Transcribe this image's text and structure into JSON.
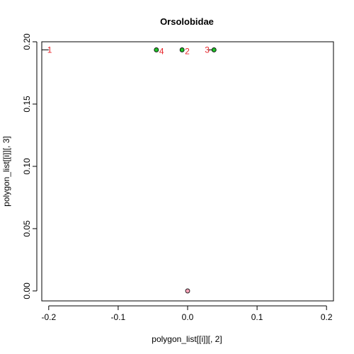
{
  "chart_data": {
    "type": "scatter",
    "title": "Orsolobidae",
    "xlabel": "polygon_list[[i]][, 2]",
    "ylabel": "polygon_list[[i]][, 3]",
    "xlim": [
      -0.21,
      0.21
    ],
    "ylim": [
      -0.008,
      0.2
    ],
    "xticks": [
      -0.2,
      -0.1,
      0.0,
      0.1,
      0.2
    ],
    "xtick_labels": [
      "-0.2",
      "-0.1",
      "0.0",
      "0.1",
      "0.2"
    ],
    "yticks": [
      0.0,
      0.05,
      0.1,
      0.15,
      0.2
    ],
    "ytick_labels": [
      "0.00",
      "0.05",
      "0.10",
      "0.15",
      "0.20"
    ],
    "grid": false,
    "point_colors": {
      "green": "#22c02a",
      "pink": "#f4a3b8",
      "label": "#e8252a"
    },
    "segments": [
      {
        "x": [
          -0.21,
          -0.2
        ],
        "y": [
          0.1935,
          0.1935
        ]
      },
      {
        "x": [
          0.03,
          0.038
        ],
        "y": [
          0.1935,
          0.1935
        ]
      }
    ],
    "points": [
      {
        "x": -0.045,
        "y": 0.1935,
        "fill": "green"
      },
      {
        "x": -0.008,
        "y": 0.1935,
        "fill": "green"
      },
      {
        "x": 0.038,
        "y": 0.1935,
        "fill": "green"
      },
      {
        "x": 0.0,
        "y": 0.0,
        "fill": "pink"
      }
    ],
    "labels": [
      {
        "text": "1",
        "x": -0.2,
        "y": 0.1935
      },
      {
        "text": "2",
        "x": -0.008,
        "y": 0.1935
      },
      {
        "text": "3",
        "x": 0.038,
        "y": 0.1935
      },
      {
        "text": "4",
        "x": -0.045,
        "y": 0.1935
      }
    ]
  }
}
